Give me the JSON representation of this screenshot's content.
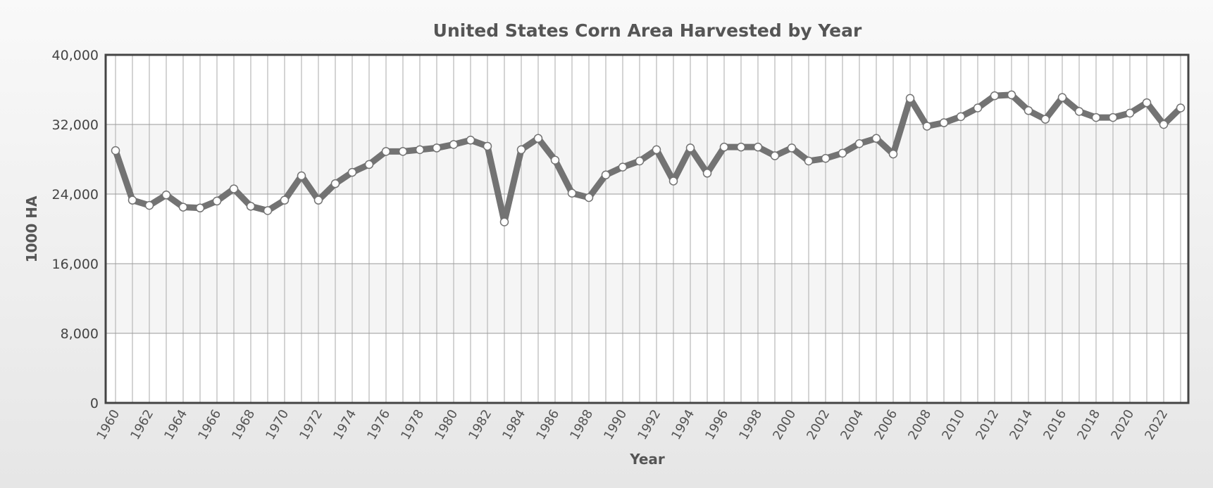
{
  "chart_data": {
    "type": "line",
    "title": "United States Corn Area Harvested by Year",
    "xlabel": "Year",
    "ylabel": "1000 HA",
    "ylim": [
      0,
      40000
    ],
    "yticks": [
      0,
      8000,
      16000,
      24000,
      32000,
      40000
    ],
    "ytick_labels": [
      "0",
      "8,000",
      "16,000",
      "24,000",
      "32,000",
      "40,000"
    ],
    "xtick_labels": [
      "1960",
      "1962",
      "1964",
      "1966",
      "1968",
      "1970",
      "1972",
      "1974",
      "1976",
      "1978",
      "1980",
      "1982",
      "1984",
      "1986",
      "1988",
      "1990",
      "1992",
      "1994",
      "1996",
      "1998",
      "2000",
      "2002",
      "2004",
      "2006",
      "2008",
      "2010",
      "2012",
      "2014",
      "2016",
      "2018",
      "2020",
      "2022"
    ],
    "grid": true,
    "legend": "none",
    "colors": {
      "line": "#737373",
      "marker_fill": "#ffffff",
      "marker_stroke": "#737373",
      "band": "#f5f5f5",
      "plot_bg": "#ffffff",
      "plot_border": "#444444",
      "grid": "#aaaaaa"
    },
    "x": [
      1960,
      1961,
      1962,
      1963,
      1964,
      1965,
      1966,
      1967,
      1968,
      1969,
      1970,
      1971,
      1972,
      1973,
      1974,
      1975,
      1976,
      1977,
      1978,
      1979,
      1980,
      1981,
      1982,
      1983,
      1984,
      1985,
      1986,
      1987,
      1988,
      1989,
      1990,
      1991,
      1992,
      1993,
      1994,
      1995,
      1996,
      1997,
      1998,
      1999,
      2000,
      2001,
      2002,
      2003,
      2004,
      2005,
      2006,
      2007,
      2008,
      2009,
      2010,
      2011,
      2012,
      2013,
      2014,
      2015,
      2016,
      2017,
      2018,
      2019,
      2020,
      2021,
      2022,
      2023
    ],
    "series": [
      {
        "values": [
          29000,
          23300,
          22700,
          23900,
          22500,
          22400,
          23200,
          24600,
          22600,
          22100,
          23300,
          26100,
          23300,
          25200,
          26500,
          27400,
          28900,
          28900,
          29100,
          29300,
          29700,
          30200,
          29500,
          20800,
          29100,
          30400,
          27900,
          24100,
          23600,
          26200,
          27100,
          27800,
          29100,
          25500,
          29300,
          26400,
          29400,
          29400,
          29400,
          28400,
          29300,
          27800,
          28100,
          28700,
          29800,
          30400,
          28600,
          35000,
          31800,
          32200,
          32900,
          33900,
          35300,
          35400,
          33600,
          32600,
          35100,
          33500,
          32800,
          32800,
          33300,
          34500,
          32000,
          33900
        ]
      }
    ]
  }
}
